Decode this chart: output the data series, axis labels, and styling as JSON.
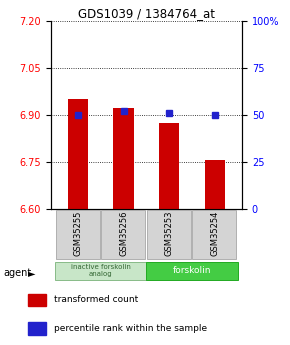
{
  "title": "GDS1039 / 1384764_at",
  "samples": [
    "GSM35255",
    "GSM35256",
    "GSM35253",
    "GSM35254"
  ],
  "bar_values": [
    6.95,
    6.92,
    6.875,
    6.755
  ],
  "percentile_values": [
    50,
    52,
    51,
    50
  ],
  "ylim_left": [
    6.6,
    7.2
  ],
  "ylim_right": [
    0,
    100
  ],
  "yticks_left": [
    6.6,
    6.75,
    6.9,
    7.05,
    7.2
  ],
  "yticks_right": [
    0,
    25,
    50,
    75,
    100
  ],
  "ytick_labels_right": [
    "0",
    "25",
    "50",
    "75",
    "100%"
  ],
  "bar_color": "#cc0000",
  "dot_color": "#2222cc",
  "legend_items": [
    {
      "color": "#cc0000",
      "label": "transformed count"
    },
    {
      "color": "#2222cc",
      "label": "percentile rank within the sample"
    }
  ],
  "bar_width": 0.45,
  "group1_color": "#c8e6c8",
  "group2_color": "#44cc44",
  "group1_label": "inactive forskolin\nanalog",
  "group2_label": "forskolin",
  "agent_arrow": "►"
}
